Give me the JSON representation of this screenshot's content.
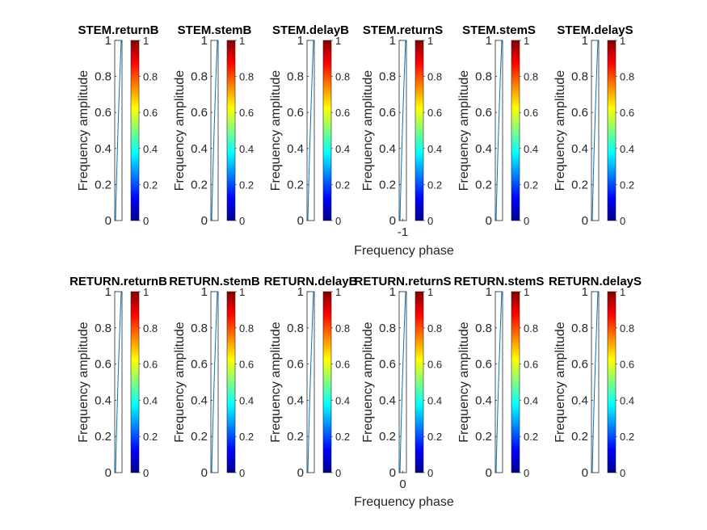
{
  "chart_data": {
    "type": "line",
    "ylabel": "Frequency amplitude",
    "xlabel": "Frequency phase",
    "y_ticks": [
      "0",
      "0.2",
      "0.4",
      "0.6",
      "0.8",
      "1"
    ],
    "colorbar_ticks": [
      "0",
      "0.2",
      "0.4",
      "0.6",
      "0.8",
      "1"
    ],
    "colormap": "jet",
    "ylim": [
      0,
      1
    ],
    "rows": [
      {
        "xlabel": "Frequency phase",
        "panels": [
          {
            "title": "STEM.returnB",
            "x": [
              -1,
              -1
            ],
            "y": [
              0,
              1
            ]
          },
          {
            "title": "STEM.stemB",
            "x": [
              -1,
              -1
            ],
            "y": [
              0,
              1
            ]
          },
          {
            "title": "STEM.delayB",
            "x": [
              -1,
              -1
            ],
            "y": [
              0,
              1
            ]
          },
          {
            "title": "STEM.returnS",
            "x": [
              -1,
              -1
            ],
            "y": [
              0,
              1
            ],
            "x_tick": "-1"
          },
          {
            "title": "STEM.stemS",
            "x": [
              -1,
              -1
            ],
            "y": [
              0,
              1
            ]
          },
          {
            "title": "STEM.delayS",
            "x": [
              -1,
              -1
            ],
            "y": [
              0,
              1
            ]
          }
        ]
      },
      {
        "xlabel": "Frequency phase",
        "panels": [
          {
            "title": "RETURN.returnB",
            "x": [
              0,
              0
            ],
            "y": [
              0,
              1
            ]
          },
          {
            "title": "RETURN.stemB",
            "x": [
              0,
              0
            ],
            "y": [
              0,
              1
            ]
          },
          {
            "title": "RETURN.delayB",
            "x": [
              0,
              0
            ],
            "y": [
              0,
              1
            ]
          },
          {
            "title": "RETURN.returnS",
            "x": [
              0,
              0
            ],
            "y": [
              0,
              1
            ],
            "x_tick": "0"
          },
          {
            "title": "RETURN.stemS",
            "x": [
              0,
              0
            ],
            "y": [
              0,
              1
            ]
          },
          {
            "title": "RETURN.delayS",
            "x": [
              0,
              0
            ],
            "y": [
              0,
              1
            ]
          }
        ]
      }
    ]
  }
}
